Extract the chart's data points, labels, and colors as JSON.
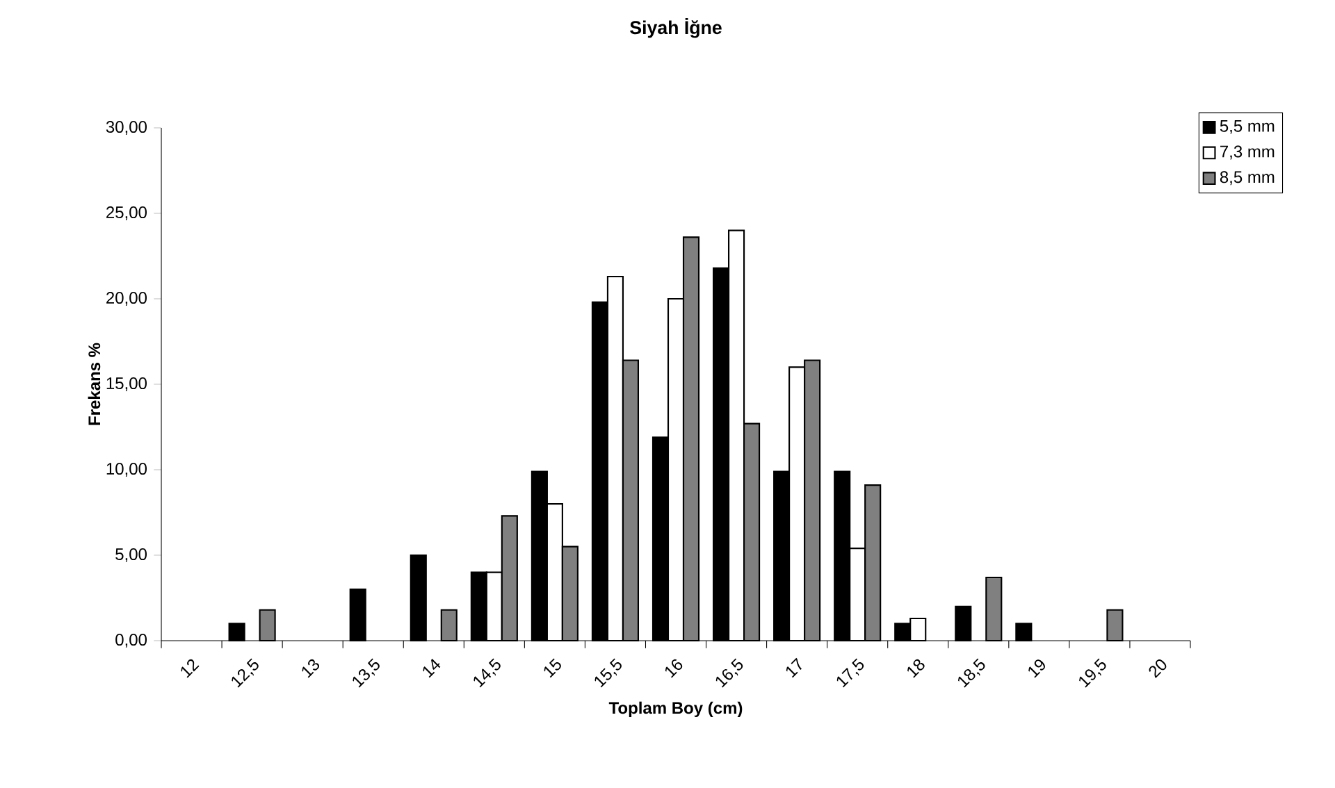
{
  "chart_data": {
    "type": "bar",
    "title": "Siyah İğne",
    "xlabel": "Toplam Boy (cm)",
    "ylabel": "Frekans %",
    "categories": [
      "12",
      "12,5",
      "13",
      "13,5",
      "14",
      "14,5",
      "15",
      "15,5",
      "16",
      "16,5",
      "17",
      "17,5",
      "18",
      "18,5",
      "19",
      "19,5",
      "20"
    ],
    "series": [
      {
        "name": "5,5 mm",
        "color": "#000000",
        "values": [
          null,
          1.0,
          null,
          3.0,
          5.0,
          4.0,
          9.9,
          19.8,
          11.9,
          21.8,
          9.9,
          9.9,
          1.0,
          2.0,
          1.0,
          null,
          null
        ]
      },
      {
        "name": "7,3 mm",
        "color": "#ffffff",
        "values": [
          null,
          null,
          null,
          null,
          null,
          4.0,
          8.0,
          21.3,
          20.0,
          24.0,
          16.0,
          5.4,
          1.3,
          null,
          null,
          null,
          null
        ]
      },
      {
        "name": "8,5 mm",
        "color": "#808080",
        "values": [
          null,
          1.8,
          null,
          null,
          1.8,
          7.3,
          5.5,
          16.4,
          23.6,
          12.7,
          16.4,
          9.1,
          null,
          3.7,
          null,
          1.8,
          null
        ]
      }
    ],
    "ylim": [
      0,
      30
    ],
    "yticks": [
      {
        "value": 0,
        "label": "0,00"
      },
      {
        "value": 5,
        "label": "5,00"
      },
      {
        "value": 10,
        "label": "10,00"
      },
      {
        "value": 15,
        "label": "15,00"
      },
      {
        "value": 20,
        "label": "20,00"
      },
      {
        "value": 25,
        "label": "25,00"
      },
      {
        "value": 30,
        "label": "30,00"
      }
    ],
    "grid": false,
    "legend": "top right"
  }
}
